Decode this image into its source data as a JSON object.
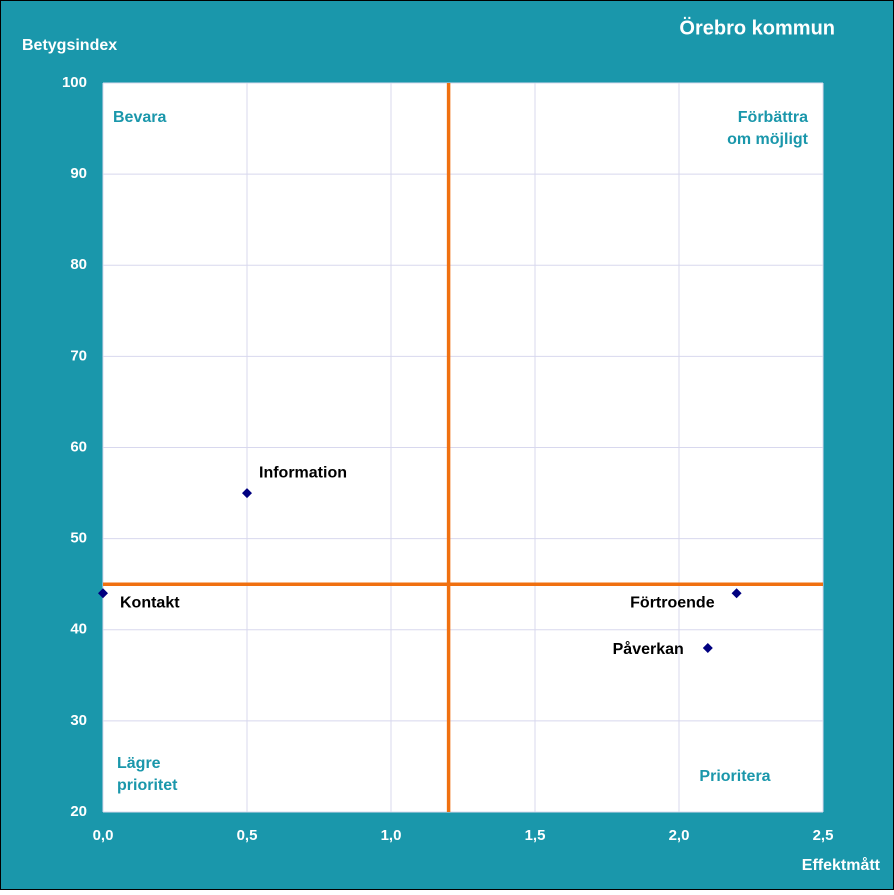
{
  "chart_data": {
    "type": "scatter",
    "title": "Örebro kommun",
    "ylabel": "Betygsindex",
    "xlabel": "Effektmått",
    "labels": [
      "Information",
      "Kontakt",
      "Förtroende",
      "Påverkan"
    ],
    "x": [
      0.5,
      0,
      2.2,
      2.1
    ],
    "values": [
      55,
      44,
      44,
      38
    ],
    "color": "#000080",
    "xlim": [
      0,
      2.5
    ],
    "xticks": [
      {
        "value": 0,
        "label": "0,0"
      },
      {
        "value": 0.5,
        "label": "0,5"
      },
      {
        "value": 1,
        "label": "1,0"
      },
      {
        "value": 1.5,
        "label": "1,5"
      },
      {
        "value": 2,
        "label": "2,0"
      },
      {
        "value": 2.5,
        "label": "2,5"
      }
    ],
    "ylim": [
      20,
      100
    ],
    "yticks": [
      20,
      30,
      40,
      50,
      60,
      70,
      80,
      90,
      100
    ],
    "grid": true,
    "reference_lines": {
      "x": 1.2,
      "y": 45,
      "color": "#f07010"
    },
    "quadrant_labels": {
      "top_left": [
        "Bevara"
      ],
      "top_right": [
        "Förbättra",
        "om möjligt"
      ],
      "bottom_left": [
        "Lägre",
        "prioritet"
      ],
      "bottom_right": [
        "Prioritera"
      ]
    }
  }
}
